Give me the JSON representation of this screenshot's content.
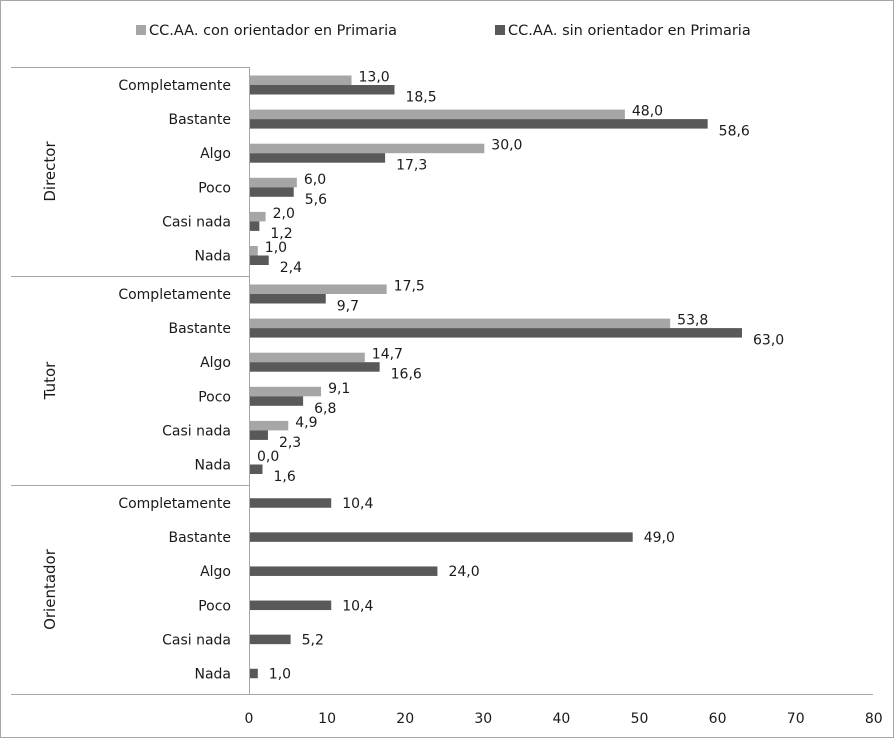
{
  "chart_data": {
    "type": "bar",
    "orientation": "horizontal",
    "legend_position": "top",
    "grid": false,
    "xlim": [
      0,
      80
    ],
    "x_ticks": [
      "0",
      "10",
      "20",
      "30",
      "40",
      "50",
      "60",
      "70",
      "80"
    ],
    "legend": [
      {
        "name": "CC.AA. con orientador en Primaria",
        "color": "#a6a6a6"
      },
      {
        "name": "CC.AA. sin orientador en Primaria",
        "color": "#595959"
      }
    ],
    "groups": [
      {
        "name": "Director",
        "categories": [
          "Completamente",
          "Bastante",
          "Algo",
          "Poco",
          "Casi nada",
          "Nada"
        ],
        "series": [
          {
            "name": "CC.AA. con orientador en Primaria",
            "values": [
              13.0,
              48.0,
              30.0,
              6.0,
              2.0,
              1.0
            ],
            "labels": [
              "13,0",
              "48,0",
              "30,0",
              "6,0",
              "2,0",
              "1,0"
            ]
          },
          {
            "name": "CC.AA. sin orientador en Primaria",
            "values": [
              18.5,
              58.6,
              17.3,
              5.6,
              1.2,
              2.4
            ],
            "labels": [
              "18,5",
              "58,6",
              "17,3",
              "5,6",
              "1,2",
              "2,4"
            ]
          }
        ]
      },
      {
        "name": "Tutor",
        "categories": [
          "Completamente",
          "Bastante",
          "Algo",
          "Poco",
          "Casi nada",
          "Nada"
        ],
        "series": [
          {
            "name": "CC.AA. con orientador en Primaria",
            "values": [
              17.5,
              53.8,
              14.7,
              9.1,
              4.9,
              0.0
            ],
            "labels": [
              "17,5",
              "53,8",
              "14,7",
              "9,1",
              "4,9",
              "0,0"
            ]
          },
          {
            "name": "CC.AA. sin orientador en Primaria",
            "values": [
              9.7,
              63.0,
              16.6,
              6.8,
              2.3,
              1.6
            ],
            "labels": [
              "9,7",
              "63,0",
              "16,6",
              "6,8",
              "2,3",
              "1,6"
            ]
          }
        ]
      },
      {
        "name": "Orientador",
        "categories": [
          "Completamente",
          "Bastante",
          "Algo",
          "Poco",
          "Casi nada",
          "Nada"
        ],
        "series": [
          {
            "name": "CC.AA. sin orientador en Primaria",
            "values": [
              10.4,
              49.0,
              24.0,
              10.4,
              5.2,
              1.0
            ],
            "labels": [
              "10,4",
              "49,0",
              "24,0",
              "10,4",
              "5,2",
              "1,0"
            ]
          }
        ]
      }
    ]
  }
}
